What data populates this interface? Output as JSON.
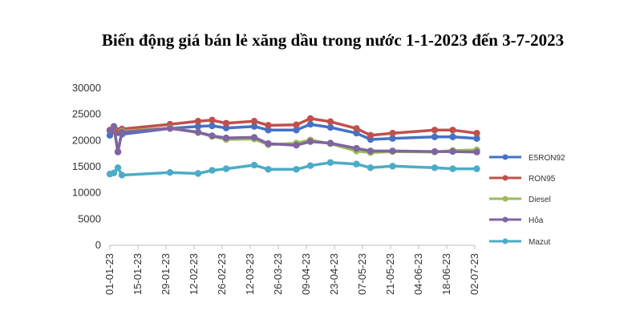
{
  "chart_data": {
    "type": "line",
    "title": "Biến động giá bán lẻ xăng dầu trong nước 1-1-2023 đến 3-7-2023",
    "xlabel": "",
    "ylabel": "",
    "ylim": [
      0,
      30000
    ],
    "yticks": [
      0,
      5000,
      10000,
      15000,
      20000,
      25000,
      30000
    ],
    "xlim": [
      "2023-01-01",
      "2023-07-02"
    ],
    "xticks": [
      "01-01-23",
      "15-01-23",
      "29-01-23",
      "12-02-23",
      "26-02-23",
      "12-03-23",
      "26-03-23",
      "09-04-23",
      "23-04-23",
      "07-05-23",
      "21-05-23",
      "04-06-23",
      "18-06-23",
      "02-07-23"
    ],
    "grid": false,
    "legend_position": "right",
    "series": [
      {
        "name": "E5RON92",
        "color": "#4472C4",
        "points": [
          [
            "2023-01-01",
            21000
          ],
          [
            "2023-01-03",
            21800
          ],
          [
            "2023-01-05",
            21500
          ],
          [
            "2023-01-07",
            21200
          ],
          [
            "2023-01-31",
            22300
          ],
          [
            "2023-02-14",
            22700
          ],
          [
            "2023-02-21",
            22800
          ],
          [
            "2023-02-28",
            22400
          ],
          [
            "2023-03-14",
            22700
          ],
          [
            "2023-03-21",
            22000
          ],
          [
            "2023-04-04",
            22000
          ],
          [
            "2023-04-11",
            23100
          ],
          [
            "2023-04-21",
            22500
          ],
          [
            "2023-05-04",
            21400
          ],
          [
            "2023-05-11",
            20200
          ],
          [
            "2023-05-22",
            20400
          ],
          [
            "2023-06-12",
            20700
          ],
          [
            "2023-06-21",
            20700
          ],
          [
            "2023-07-03",
            20400
          ]
        ]
      },
      {
        "name": "RON95",
        "color": "#C0504D",
        "points": [
          [
            "2023-01-01",
            22000
          ],
          [
            "2023-01-03",
            21900
          ],
          [
            "2023-01-05",
            21900
          ],
          [
            "2023-01-07",
            22200
          ],
          [
            "2023-01-31",
            23100
          ],
          [
            "2023-02-14",
            23700
          ],
          [
            "2023-02-21",
            23900
          ],
          [
            "2023-02-28",
            23300
          ],
          [
            "2023-03-14",
            23700
          ],
          [
            "2023-03-21",
            22900
          ],
          [
            "2023-04-04",
            23000
          ],
          [
            "2023-04-11",
            24200
          ],
          [
            "2023-04-21",
            23600
          ],
          [
            "2023-05-04",
            22300
          ],
          [
            "2023-05-11",
            21000
          ],
          [
            "2023-05-22",
            21400
          ],
          [
            "2023-06-12",
            22000
          ],
          [
            "2023-06-21",
            22000
          ],
          [
            "2023-07-03",
            21400
          ]
        ]
      },
      {
        "name": "Diesel",
        "color": "#9BBB59",
        "points": [
          [
            "2023-01-01",
            21900
          ],
          [
            "2023-01-03",
            22600
          ],
          [
            "2023-01-05",
            17900
          ],
          [
            "2023-01-07",
            21800
          ],
          [
            "2023-01-31",
            22400
          ],
          [
            "2023-02-14",
            21500
          ],
          [
            "2023-02-21",
            20800
          ],
          [
            "2023-02-28",
            20200
          ],
          [
            "2023-03-14",
            20300
          ],
          [
            "2023-03-21",
            19200
          ],
          [
            "2023-04-04",
            19500
          ],
          [
            "2023-04-11",
            20100
          ],
          [
            "2023-04-21",
            19400
          ],
          [
            "2023-05-04",
            18000
          ],
          [
            "2023-05-11",
            17700
          ],
          [
            "2023-05-22",
            17900
          ],
          [
            "2023-06-12",
            17800
          ],
          [
            "2023-06-21",
            18100
          ],
          [
            "2023-07-03",
            18200
          ]
        ]
      },
      {
        "name": "Hỏa",
        "color": "#8064A2",
        "points": [
          [
            "2023-01-01",
            21900
          ],
          [
            "2023-01-03",
            22700
          ],
          [
            "2023-01-05",
            17800
          ],
          [
            "2023-01-07",
            21600
          ],
          [
            "2023-01-31",
            22300
          ],
          [
            "2023-02-14",
            21600
          ],
          [
            "2023-02-21",
            20900
          ],
          [
            "2023-02-28",
            20500
          ],
          [
            "2023-03-14",
            20600
          ],
          [
            "2023-03-21",
            19400
          ],
          [
            "2023-04-04",
            19100
          ],
          [
            "2023-04-11",
            19800
          ],
          [
            "2023-04-21",
            19500
          ],
          [
            "2023-05-04",
            18500
          ],
          [
            "2023-05-11",
            18000
          ],
          [
            "2023-05-22",
            18000
          ],
          [
            "2023-06-12",
            17900
          ],
          [
            "2023-06-21",
            17900
          ],
          [
            "2023-07-03",
            17800
          ]
        ]
      },
      {
        "name": "Mazut",
        "color": "#4BACC6",
        "points": [
          [
            "2023-01-01",
            13600
          ],
          [
            "2023-01-03",
            13800
          ],
          [
            "2023-01-05",
            14800
          ],
          [
            "2023-01-07",
            13400
          ],
          [
            "2023-01-31",
            13900
          ],
          [
            "2023-02-14",
            13700
          ],
          [
            "2023-02-21",
            14300
          ],
          [
            "2023-02-28",
            14600
          ],
          [
            "2023-03-14",
            15300
          ],
          [
            "2023-03-21",
            14500
          ],
          [
            "2023-04-04",
            14500
          ],
          [
            "2023-04-11",
            15200
          ],
          [
            "2023-04-21",
            15800
          ],
          [
            "2023-05-04",
            15500
          ],
          [
            "2023-05-11",
            14800
          ],
          [
            "2023-05-22",
            15100
          ],
          [
            "2023-06-12",
            14800
          ],
          [
            "2023-06-21",
            14600
          ],
          [
            "2023-07-03",
            14600
          ]
        ]
      }
    ]
  }
}
